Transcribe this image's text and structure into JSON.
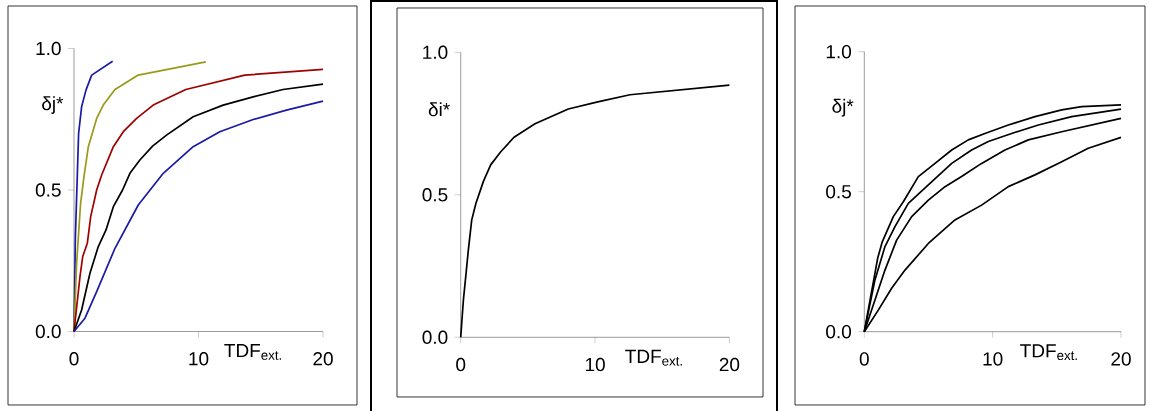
{
  "chart_data": [
    {
      "type": "line",
      "ylabel": "δj*",
      "xlabel": "TDF$_{ext.}$",
      "xlim": [
        0,
        20
      ],
      "ylim": [
        0,
        1
      ],
      "xticks": [
        0,
        10,
        20
      ],
      "yticks": [
        {
          "value": 0,
          "label": "0.0"
        },
        {
          "value": 0.5,
          "label": "0.5"
        },
        {
          "value": 1,
          "label": "1.0"
        }
      ],
      "marker": "none",
      "series": [
        {
          "color": "#1a1aa6",
          "x": [
            0,
            0.11,
            0.27,
            0.37,
            0.61,
            0.96,
            1.42,
            3.1
          ],
          "values": [
            0,
            0.335,
            0.559,
            0.7,
            0.794,
            0.853,
            0.906,
            0.955
          ]
        },
        {
          "color": "#9a9a1a",
          "x": [
            0,
            0.21,
            0.53,
            0.8,
            1.15,
            1.82,
            2.35,
            3.29,
            5.16,
            10.59
          ],
          "values": [
            0,
            0.241,
            0.453,
            0.547,
            0.653,
            0.753,
            0.8,
            0.855,
            0.906,
            0.953
          ]
        },
        {
          "color": "#a00000",
          "x": [
            0,
            0.48,
            0.7,
            1.07,
            1.34,
            1.82,
            2.22,
            3.16,
            3.96,
            5.03,
            6.36,
            8.98,
            13.72,
            20
          ],
          "values": [
            0,
            0.194,
            0.265,
            0.312,
            0.406,
            0.5,
            0.553,
            0.653,
            0.706,
            0.753,
            0.8,
            0.855,
            0.906,
            0.926
          ]
        },
        {
          "color": "#000000",
          "x": [
            0,
            0.61,
            1.28,
            1.95,
            2.57,
            3.16,
            3.9,
            4.49,
            5.29,
            6.31,
            7.43,
            9.57,
            11.98,
            14.39,
            16.79,
            20
          ],
          "values": [
            0,
            0.076,
            0.206,
            0.3,
            0.359,
            0.441,
            0.5,
            0.559,
            0.606,
            0.655,
            0.694,
            0.759,
            0.8,
            0.829,
            0.855,
            0.874
          ]
        },
        {
          "color": "#1a1aa6",
          "x": [
            0,
            0.88,
            1.82,
            3.29,
            5.16,
            7.17,
            9.57,
            11.71,
            14.39,
            17.06,
            20
          ],
          "values": [
            0,
            0.047,
            0.141,
            0.294,
            0.447,
            0.559,
            0.653,
            0.706,
            0.749,
            0.782,
            0.814
          ]
        }
      ]
    },
    {
      "type": "line",
      "ylabel": "δi*",
      "xlabel": "TDF$_{ext.}$",
      "xlim": [
        0,
        20
      ],
      "ylim": [
        0,
        1
      ],
      "xticks": [
        0,
        10,
        20
      ],
      "yticks": [
        {
          "value": 0,
          "label": "0.0"
        },
        {
          "value": 0.5,
          "label": "0.5"
        },
        {
          "value": 1,
          "label": "1.0"
        }
      ],
      "marker": "none",
      "series": [
        {
          "color": "#000000",
          "x": [
            0,
            0.2,
            0.4,
            0.57,
            0.82,
            1.14,
            1.69,
            2.23,
            2.98,
            3.97,
            5.53,
            8.01,
            10.12,
            12.6,
            20
          ],
          "values": [
            0,
            0.131,
            0.225,
            0.307,
            0.412,
            0.471,
            0.547,
            0.605,
            0.651,
            0.702,
            0.749,
            0.801,
            0.825,
            0.851,
            0.885
          ]
        }
      ]
    },
    {
      "type": "line",
      "ylabel": "δj*",
      "xlabel": "TDF$_{ext.}$",
      "xlim": [
        0,
        20
      ],
      "ylim": [
        0,
        1
      ],
      "xticks": [
        0,
        10,
        20
      ],
      "yticks": [
        {
          "value": 0,
          "label": "0.0"
        },
        {
          "value": 0.5,
          "label": "0.5"
        },
        {
          "value": 1,
          "label": "1.0"
        }
      ],
      "marker": "none",
      "series": [
        {
          "color": "#000000",
          "x": [
            0,
            1.04,
            1.4,
            2.26,
            3.04,
            4.21,
            5.51,
            6.81,
            8.1,
            9.4,
            11.22,
            13.3,
            15.38,
            16.94,
            20
          ],
          "values": [
            0,
            0.262,
            0.321,
            0.411,
            0.464,
            0.554,
            0.601,
            0.649,
            0.685,
            0.708,
            0.738,
            0.768,
            0.792,
            0.804,
            0.81
          ]
        },
        {
          "color": "#000000",
          "x": [
            0,
            0.83,
            1.61,
            2.39,
            3.43,
            4.99,
            6.81,
            8.36,
            9.66,
            11.48,
            13.56,
            16.16,
            20
          ],
          "values": [
            0,
            0.185,
            0.304,
            0.375,
            0.458,
            0.524,
            0.601,
            0.649,
            0.679,
            0.708,
            0.738,
            0.768,
            0.795
          ]
        },
        {
          "color": "#000000",
          "x": [
            0,
            0.83,
            1.61,
            2.52,
            3.69,
            4.99,
            6.29,
            7.58,
            9.14,
            10.96,
            12.78,
            15.38,
            20
          ],
          "values": [
            0,
            0.113,
            0.22,
            0.327,
            0.411,
            0.47,
            0.518,
            0.554,
            0.601,
            0.649,
            0.685,
            0.714,
            0.762
          ]
        },
        {
          "color": "#000000",
          "x": [
            0,
            1.09,
            2.13,
            3.17,
            4.99,
            7.06,
            9.14,
            11.22,
            13.3,
            15.38,
            17.45,
            20
          ],
          "values": [
            0,
            0.077,
            0.155,
            0.22,
            0.315,
            0.399,
            0.452,
            0.518,
            0.56,
            0.607,
            0.655,
            0.694
          ]
        }
      ]
    }
  ]
}
